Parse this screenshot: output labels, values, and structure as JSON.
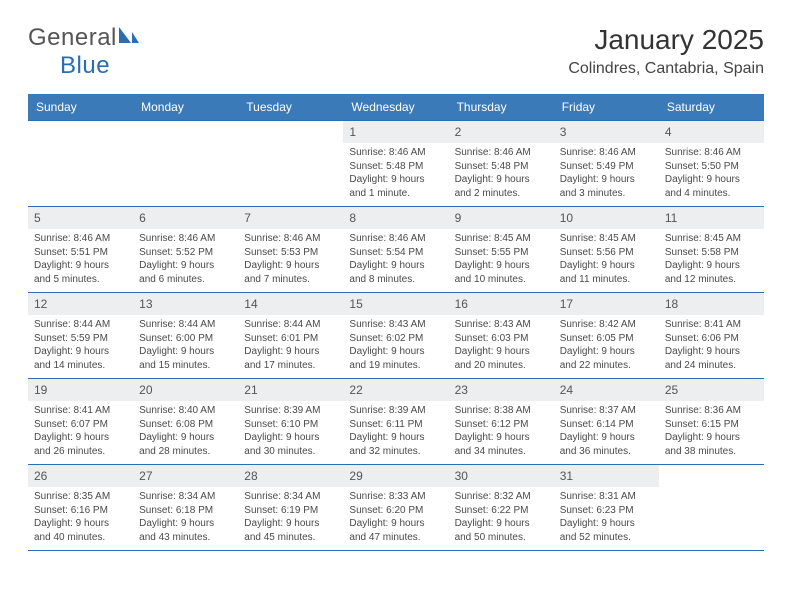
{
  "brand": {
    "word1": "General",
    "word2": "Blue"
  },
  "title": "January 2025",
  "location": "Colindres, Cantabria, Spain",
  "colors": {
    "header_bg": "#3a7ab8",
    "header_fg": "#ffffff",
    "rule": "#2a6db3",
    "daynum_bg": "#eceeef",
    "body_text": "#4a4a4a"
  },
  "weekdays": [
    "Sunday",
    "Monday",
    "Tuesday",
    "Wednesday",
    "Thursday",
    "Friday",
    "Saturday"
  ],
  "weeks": [
    [
      {
        "n": "",
        "sr": "",
        "ss": "",
        "dl": ""
      },
      {
        "n": "",
        "sr": "",
        "ss": "",
        "dl": ""
      },
      {
        "n": "",
        "sr": "",
        "ss": "",
        "dl": ""
      },
      {
        "n": "1",
        "sr": "Sunrise: 8:46 AM",
        "ss": "Sunset: 5:48 PM",
        "dl": "Daylight: 9 hours and 1 minute."
      },
      {
        "n": "2",
        "sr": "Sunrise: 8:46 AM",
        "ss": "Sunset: 5:48 PM",
        "dl": "Daylight: 9 hours and 2 minutes."
      },
      {
        "n": "3",
        "sr": "Sunrise: 8:46 AM",
        "ss": "Sunset: 5:49 PM",
        "dl": "Daylight: 9 hours and 3 minutes."
      },
      {
        "n": "4",
        "sr": "Sunrise: 8:46 AM",
        "ss": "Sunset: 5:50 PM",
        "dl": "Daylight: 9 hours and 4 minutes."
      }
    ],
    [
      {
        "n": "5",
        "sr": "Sunrise: 8:46 AM",
        "ss": "Sunset: 5:51 PM",
        "dl": "Daylight: 9 hours and 5 minutes."
      },
      {
        "n": "6",
        "sr": "Sunrise: 8:46 AM",
        "ss": "Sunset: 5:52 PM",
        "dl": "Daylight: 9 hours and 6 minutes."
      },
      {
        "n": "7",
        "sr": "Sunrise: 8:46 AM",
        "ss": "Sunset: 5:53 PM",
        "dl": "Daylight: 9 hours and 7 minutes."
      },
      {
        "n": "8",
        "sr": "Sunrise: 8:46 AM",
        "ss": "Sunset: 5:54 PM",
        "dl": "Daylight: 9 hours and 8 minutes."
      },
      {
        "n": "9",
        "sr": "Sunrise: 8:45 AM",
        "ss": "Sunset: 5:55 PM",
        "dl": "Daylight: 9 hours and 10 minutes."
      },
      {
        "n": "10",
        "sr": "Sunrise: 8:45 AM",
        "ss": "Sunset: 5:56 PM",
        "dl": "Daylight: 9 hours and 11 minutes."
      },
      {
        "n": "11",
        "sr": "Sunrise: 8:45 AM",
        "ss": "Sunset: 5:58 PM",
        "dl": "Daylight: 9 hours and 12 minutes."
      }
    ],
    [
      {
        "n": "12",
        "sr": "Sunrise: 8:44 AM",
        "ss": "Sunset: 5:59 PM",
        "dl": "Daylight: 9 hours and 14 minutes."
      },
      {
        "n": "13",
        "sr": "Sunrise: 8:44 AM",
        "ss": "Sunset: 6:00 PM",
        "dl": "Daylight: 9 hours and 15 minutes."
      },
      {
        "n": "14",
        "sr": "Sunrise: 8:44 AM",
        "ss": "Sunset: 6:01 PM",
        "dl": "Daylight: 9 hours and 17 minutes."
      },
      {
        "n": "15",
        "sr": "Sunrise: 8:43 AM",
        "ss": "Sunset: 6:02 PM",
        "dl": "Daylight: 9 hours and 19 minutes."
      },
      {
        "n": "16",
        "sr": "Sunrise: 8:43 AM",
        "ss": "Sunset: 6:03 PM",
        "dl": "Daylight: 9 hours and 20 minutes."
      },
      {
        "n": "17",
        "sr": "Sunrise: 8:42 AM",
        "ss": "Sunset: 6:05 PM",
        "dl": "Daylight: 9 hours and 22 minutes."
      },
      {
        "n": "18",
        "sr": "Sunrise: 8:41 AM",
        "ss": "Sunset: 6:06 PM",
        "dl": "Daylight: 9 hours and 24 minutes."
      }
    ],
    [
      {
        "n": "19",
        "sr": "Sunrise: 8:41 AM",
        "ss": "Sunset: 6:07 PM",
        "dl": "Daylight: 9 hours and 26 minutes."
      },
      {
        "n": "20",
        "sr": "Sunrise: 8:40 AM",
        "ss": "Sunset: 6:08 PM",
        "dl": "Daylight: 9 hours and 28 minutes."
      },
      {
        "n": "21",
        "sr": "Sunrise: 8:39 AM",
        "ss": "Sunset: 6:10 PM",
        "dl": "Daylight: 9 hours and 30 minutes."
      },
      {
        "n": "22",
        "sr": "Sunrise: 8:39 AM",
        "ss": "Sunset: 6:11 PM",
        "dl": "Daylight: 9 hours and 32 minutes."
      },
      {
        "n": "23",
        "sr": "Sunrise: 8:38 AM",
        "ss": "Sunset: 6:12 PM",
        "dl": "Daylight: 9 hours and 34 minutes."
      },
      {
        "n": "24",
        "sr": "Sunrise: 8:37 AM",
        "ss": "Sunset: 6:14 PM",
        "dl": "Daylight: 9 hours and 36 minutes."
      },
      {
        "n": "25",
        "sr": "Sunrise: 8:36 AM",
        "ss": "Sunset: 6:15 PM",
        "dl": "Daylight: 9 hours and 38 minutes."
      }
    ],
    [
      {
        "n": "26",
        "sr": "Sunrise: 8:35 AM",
        "ss": "Sunset: 6:16 PM",
        "dl": "Daylight: 9 hours and 40 minutes."
      },
      {
        "n": "27",
        "sr": "Sunrise: 8:34 AM",
        "ss": "Sunset: 6:18 PM",
        "dl": "Daylight: 9 hours and 43 minutes."
      },
      {
        "n": "28",
        "sr": "Sunrise: 8:34 AM",
        "ss": "Sunset: 6:19 PM",
        "dl": "Daylight: 9 hours and 45 minutes."
      },
      {
        "n": "29",
        "sr": "Sunrise: 8:33 AM",
        "ss": "Sunset: 6:20 PM",
        "dl": "Daylight: 9 hours and 47 minutes."
      },
      {
        "n": "30",
        "sr": "Sunrise: 8:32 AM",
        "ss": "Sunset: 6:22 PM",
        "dl": "Daylight: 9 hours and 50 minutes."
      },
      {
        "n": "31",
        "sr": "Sunrise: 8:31 AM",
        "ss": "Sunset: 6:23 PM",
        "dl": "Daylight: 9 hours and 52 minutes."
      },
      {
        "n": "",
        "sr": "",
        "ss": "",
        "dl": ""
      }
    ]
  ]
}
